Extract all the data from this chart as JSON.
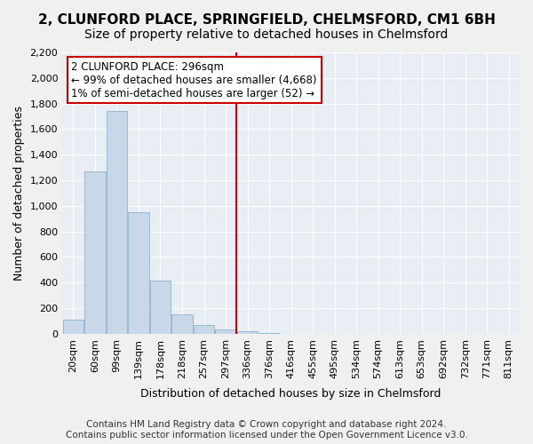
{
  "title": "2, CLUNFORD PLACE, SPRINGFIELD, CHELMSFORD, CM1 6BH",
  "subtitle": "Size of property relative to detached houses in Chelmsford",
  "xlabel": "Distribution of detached houses by size in Chelmsford",
  "ylabel": "Number of detached properties",
  "footnote1": "Contains HM Land Registry data © Crown copyright and database right 2024.",
  "footnote2": "Contains public sector information licensed under the Open Government Licence v3.0.",
  "bin_labels": [
    "20sqm",
    "60sqm",
    "99sqm",
    "139sqm",
    "178sqm",
    "218sqm",
    "257sqm",
    "297sqm",
    "336sqm",
    "376sqm",
    "416sqm",
    "455sqm",
    "495sqm",
    "534sqm",
    "574sqm",
    "613sqm",
    "653sqm",
    "692sqm",
    "732sqm",
    "771sqm",
    "811sqm"
  ],
  "bar_values": [
    110,
    1270,
    1740,
    950,
    415,
    155,
    70,
    35,
    20,
    5,
    0,
    0,
    0,
    0,
    0,
    0,
    0,
    0,
    0,
    0,
    0
  ],
  "bar_color": "#c8d8e8",
  "bar_edge_color": "#7aaac8",
  "property_line_x": 7,
  "property_line_color": "#cc0000",
  "annotation_line1": "2 CLUNFORD PLACE: 296sqm",
  "annotation_line2": "← 99% of detached houses are smaller (4,668)",
  "annotation_line3": "1% of semi-detached houses are larger (52) →",
  "annotation_box_color": "#cc0000",
  "ylim": [
    0,
    2200
  ],
  "yticks": [
    0,
    200,
    400,
    600,
    800,
    1000,
    1200,
    1400,
    1600,
    1800,
    2000,
    2200
  ],
  "bg_color": "#e8eef4",
  "grid_color": "#ffffff",
  "title_fontsize": 11,
  "subtitle_fontsize": 10,
  "axis_label_fontsize": 9,
  "tick_fontsize": 8,
  "annotation_fontsize": 8.5,
  "footnote_fontsize": 7.5
}
